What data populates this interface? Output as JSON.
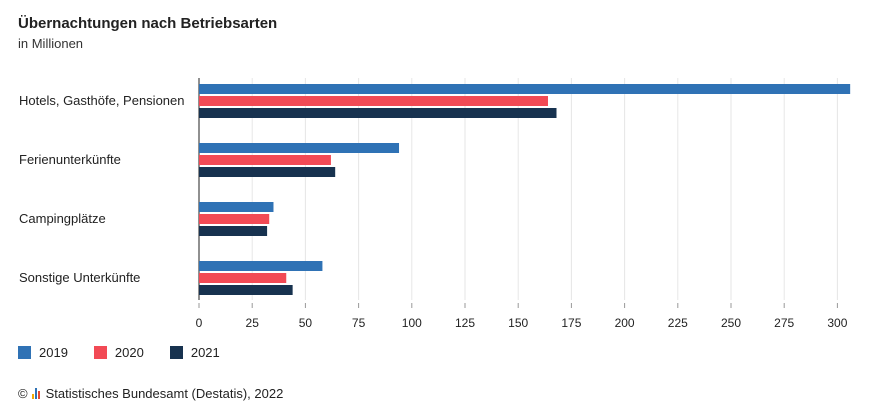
{
  "chart_data": {
    "type": "bar",
    "orientation": "horizontal",
    "title": "Übernachtungen nach Betriebsarten",
    "subtitle": "in Millionen",
    "categories": [
      "Hotels, Gasthöfe, Pensionen",
      "Ferienunterkünfte",
      "Campingplätze",
      "Sonstige Unterkünfte"
    ],
    "series": [
      {
        "name": "2019",
        "color": "#2f72b5",
        "values": [
          306,
          94,
          35,
          58
        ]
      },
      {
        "name": "2020",
        "color": "#f24a55",
        "values": [
          164,
          62,
          33,
          41
        ]
      },
      {
        "name": "2021",
        "color": "#17324f",
        "values": [
          168,
          64,
          32,
          44
        ]
      }
    ],
    "xlim": [
      0,
      320
    ],
    "xticks": [
      0,
      25,
      50,
      75,
      100,
      125,
      150,
      175,
      200,
      225,
      250,
      275,
      300
    ],
    "grid": true,
    "legend_position": "bottom-left"
  },
  "footer": {
    "copyright": "©",
    "source": "Statistisches Bundesamt (Destatis), 2022"
  }
}
